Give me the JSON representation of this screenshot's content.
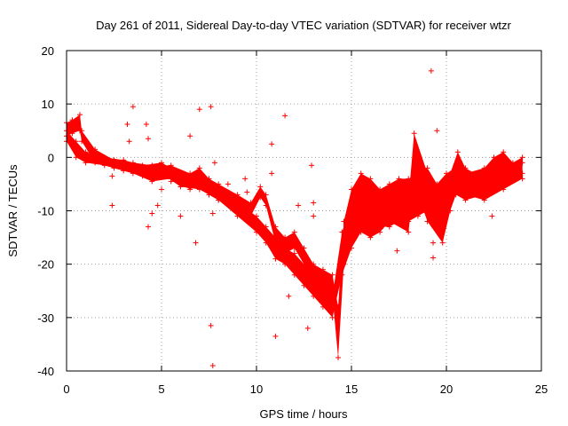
{
  "chart_data": {
    "type": "scatter",
    "title": "Day 261 of 2011, Sidereal Day-to-day VTEC variation (SDTVAR) for receiver wtzr",
    "xlabel": "GPS time / hours",
    "ylabel": "SDTVAR / TECUs",
    "xlim": [
      0,
      25
    ],
    "ylim": [
      -40,
      20
    ],
    "xticks": [
      0,
      5,
      10,
      15,
      20,
      25
    ],
    "yticks": [
      -40,
      -30,
      -20,
      -10,
      0,
      10,
      20
    ],
    "xtick_labels": [
      "0",
      "5",
      "10",
      "15",
      "20",
      "25"
    ],
    "ytick_labels": [
      "-40",
      "-30",
      "-20",
      "-10",
      "0",
      "10",
      "20"
    ],
    "grid": true,
    "marker": "plus",
    "color": "#ff0000",
    "series": [
      {
        "name": "upper trace",
        "band": [
          [
            0.0,
            4.0,
            6.5
          ],
          [
            0.3,
            4.5,
            7.0
          ],
          [
            0.7,
            5.0,
            8.0
          ],
          [
            0.8,
            3.0,
            5.0
          ],
          [
            1.5,
            -1.0,
            1.5
          ],
          [
            2.5,
            -2.0,
            -0.5
          ],
          [
            3.5,
            -3.0,
            -1.0
          ],
          [
            4.5,
            -4.5,
            -1.5
          ],
          [
            5.5,
            -4.0,
            -1.5
          ],
          [
            6.5,
            -6.0,
            -3.0
          ],
          [
            7.0,
            -5.0,
            -2.0
          ],
          [
            7.5,
            -7.0,
            -4.0
          ],
          [
            8.0,
            -8.0,
            -5.0
          ],
          [
            9.0,
            -10.0,
            -7.0
          ],
          [
            9.7,
            -11.0,
            -8.5
          ],
          [
            10.2,
            -7.5,
            -5.5
          ],
          [
            10.5,
            -9.0,
            -7.0
          ],
          [
            11.0,
            -16.0,
            -13.0
          ],
          [
            11.5,
            -18.0,
            -15.0
          ],
          [
            12.0,
            -17.0,
            -14.0
          ],
          [
            12.5,
            -20.0,
            -17.0
          ],
          [
            13.0,
            -24.0,
            -20.0
          ],
          [
            13.5,
            -25.0,
            -21.0
          ],
          [
            14.0,
            -26.0,
            -22.0
          ],
          [
            14.3,
            -37.5,
            -28.0
          ],
          [
            14.6,
            -20.0,
            -12.0
          ],
          [
            15.0,
            -14.0,
            -6.0
          ],
          [
            15.5,
            -11.0,
            -3.0
          ],
          [
            16.0,
            -11.0,
            -4.0
          ],
          [
            16.5,
            -13.0,
            -6.0
          ],
          [
            17.0,
            -13.0,
            -5.0
          ],
          [
            17.5,
            -12.0,
            -4.0
          ],
          [
            18.0,
            -12.0,
            -4.0
          ],
          [
            18.5,
            -11.0,
            -3.0
          ],
          [
            19.0,
            -10.0,
            -2.0
          ],
          [
            19.5,
            -12.0,
            -5.0
          ],
          [
            20.0,
            -10.0,
            -3.0
          ],
          [
            20.5,
            -7.0,
            -2.0
          ],
          [
            21.0,
            -8.0,
            -3.0
          ],
          [
            22.0,
            -7.0,
            -2.0
          ],
          [
            22.5,
            -5.0,
            0.0
          ],
          [
            23.0,
            -4.0,
            1.0
          ],
          [
            23.5,
            -4.0,
            -1.0
          ],
          [
            24.0,
            -3.0,
            0.0
          ]
        ]
      },
      {
        "name": "lower trace",
        "band": [
          [
            0.0,
            3.0,
            5.0
          ],
          [
            0.5,
            0.0,
            3.0
          ],
          [
            1.0,
            -1.0,
            1.0
          ],
          [
            2.0,
            -1.5,
            0.0
          ],
          [
            3.0,
            -2.5,
            -0.5
          ],
          [
            4.0,
            -3.5,
            -1.5
          ],
          [
            5.0,
            -3.0,
            -1.0
          ],
          [
            6.0,
            -5.5,
            -3.0
          ],
          [
            7.0,
            -6.0,
            -3.5
          ],
          [
            8.0,
            -8.0,
            -5.5
          ],
          [
            9.0,
            -11.0,
            -8.5
          ],
          [
            10.0,
            -14.0,
            -11.0
          ],
          [
            10.5,
            -16.0,
            -13.0
          ],
          [
            11.0,
            -19.0,
            -15.0
          ],
          [
            11.5,
            -20.0,
            -17.0
          ],
          [
            12.0,
            -22.0,
            -18.0
          ],
          [
            12.5,
            -24.0,
            -20.0
          ],
          [
            13.0,
            -26.0,
            -22.0
          ],
          [
            13.5,
            -28.0,
            -24.0
          ],
          [
            14.0,
            -30.0,
            -26.0
          ],
          [
            14.5,
            -22.0,
            -14.0
          ],
          [
            15.0,
            -17.0,
            -9.0
          ],
          [
            15.5,
            -14.0,
            -7.0
          ],
          [
            16.0,
            -15.0,
            -8.0
          ],
          [
            16.5,
            -14.0,
            -8.0
          ],
          [
            17.0,
            -12.0,
            -6.0
          ],
          [
            18.0,
            -14.0,
            -8.0
          ],
          [
            18.3,
            -5.0,
            4.5
          ],
          [
            19.0,
            -12.0,
            -3.0
          ],
          [
            19.8,
            -16.0,
            -9.0
          ],
          [
            20.2,
            -10.0,
            -3.0
          ],
          [
            20.6,
            -6.0,
            1.0
          ],
          [
            21.0,
            -7.0,
            -2.0
          ],
          [
            22.0,
            -8.0,
            -4.0
          ],
          [
            23.0,
            -6.0,
            -2.0
          ],
          [
            24.0,
            -4.0,
            -1.0
          ]
        ]
      },
      {
        "name": "outliers",
        "points": [
          [
            3.5,
            9.5
          ],
          [
            3.2,
            6.2
          ],
          [
            4.2,
            6.2
          ],
          [
            3.3,
            3.0
          ],
          [
            4.3,
            3.5
          ],
          [
            2.4,
            -9.0
          ],
          [
            4.3,
            -13.0
          ],
          [
            4.5,
            -10.5
          ],
          [
            7.0,
            9.0
          ],
          [
            7.6,
            9.5
          ],
          [
            6.5,
            4.0
          ],
          [
            7.8,
            -1.0
          ],
          [
            8.5,
            -5.0
          ],
          [
            9.4,
            -4.0
          ],
          [
            9.5,
            -6.5
          ],
          [
            7.7,
            -10.5
          ],
          [
            6.8,
            -16.0
          ],
          [
            7.6,
            -31.5
          ],
          [
            7.7,
            -39.0
          ],
          [
            10.8,
            2.5
          ],
          [
            10.8,
            -3.0
          ],
          [
            11.5,
            7.8
          ],
          [
            11.7,
            -26.0
          ],
          [
            11.0,
            -33.5
          ],
          [
            12.2,
            -9.0
          ],
          [
            12.6,
            -22.0
          ],
          [
            12.7,
            -32.0
          ],
          [
            12.9,
            -1.5
          ],
          [
            13.0,
            -8.5
          ],
          [
            13.0,
            -11.0
          ],
          [
            17.4,
            -17.5
          ],
          [
            19.2,
            16.2
          ],
          [
            19.5,
            5.0
          ],
          [
            19.3,
            -16.0
          ],
          [
            19.3,
            -18.8
          ],
          [
            22.4,
            -11.0
          ],
          [
            2.4,
            -3.5
          ],
          [
            5.0,
            -6.0
          ],
          [
            4.8,
            -9.0
          ],
          [
            6.0,
            -11.0
          ],
          [
            5.5,
            -4.5
          ],
          [
            8.0,
            -7.0
          ]
        ]
      }
    ]
  }
}
